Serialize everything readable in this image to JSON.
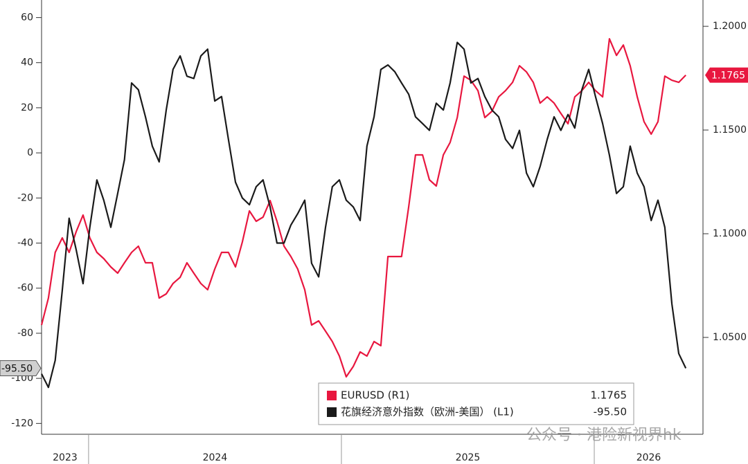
{
  "chart_data": {
    "type": "line",
    "x": [
      2023.814,
      2023.841,
      2023.868,
      2023.896,
      2023.923,
      2023.951,
      2023.978,
      2024.005,
      2024.033,
      2024.06,
      2024.088,
      2024.115,
      2024.142,
      2024.17,
      2024.197,
      2024.225,
      2024.252,
      2024.279,
      2024.307,
      2024.334,
      2024.362,
      2024.389,
      2024.416,
      2024.444,
      2024.471,
      2024.499,
      2024.526,
      2024.553,
      2024.581,
      2024.608,
      2024.636,
      2024.663,
      2024.69,
      2024.718,
      2024.745,
      2024.773,
      2024.8,
      2024.827,
      2024.855,
      2024.882,
      2024.91,
      2024.937,
      2024.964,
      2024.992,
      2025.019,
      2025.047,
      2025.074,
      2025.101,
      2025.129,
      2025.156,
      2025.184,
      2025.211,
      2025.238,
      2025.266,
      2025.293,
      2025.321,
      2025.348,
      2025.375,
      2025.403,
      2025.43,
      2025.458,
      2025.485,
      2025.512,
      2025.54,
      2025.567,
      2025.595,
      2025.622,
      2025.649,
      2025.677,
      2025.704,
      2025.732,
      2025.759,
      2025.786,
      2025.814,
      2025.841,
      2025.868,
      2025.896,
      2025.923,
      2025.951,
      2025.978,
      2026.005,
      2026.033,
      2026.06,
      2026.088,
      2026.115,
      2026.142,
      2026.17,
      2026.197,
      2026.225,
      2026.252,
      2026.279,
      2026.307,
      2026.334,
      2026.362
    ],
    "series": [
      {
        "name": "EURUSD (R1)",
        "color": "#e8173f",
        "axis": "y2",
        "values": [
          1.056,
          1.069,
          1.091,
          1.098,
          1.091,
          1.101,
          1.109,
          1.098,
          1.091,
          1.088,
          1.084,
          1.081,
          1.086,
          1.091,
          1.094,
          1.086,
          1.086,
          1.069,
          1.071,
          1.076,
          1.079,
          1.086,
          1.081,
          1.076,
          1.073,
          1.083,
          1.091,
          1.091,
          1.084,
          1.096,
          1.111,
          1.106,
          1.108,
          1.116,
          1.106,
          1.094,
          1.089,
          1.083,
          1.073,
          1.056,
          1.058,
          1.053,
          1.048,
          1.041,
          1.031,
          1.036,
          1.043,
          1.041,
          1.048,
          1.046,
          1.089,
          1.089,
          1.089,
          1.113,
          1.138,
          1.138,
          1.126,
          1.123,
          1.138,
          1.144,
          1.156,
          1.176,
          1.174,
          1.169,
          1.156,
          1.159,
          1.166,
          1.169,
          1.173,
          1.181,
          1.178,
          1.173,
          1.163,
          1.166,
          1.163,
          1.158,
          1.153,
          1.166,
          1.169,
          1.173,
          1.169,
          1.166,
          1.194,
          1.186,
          1.191,
          1.181,
          1.166,
          1.154,
          1.148,
          1.154,
          1.176,
          1.174,
          1.173,
          1.1765
        ]
      },
      {
        "name": "花旗经济意外指数（欧洲-美国） (L1)",
        "color": "#1a1a1a",
        "axis": "y",
        "values": [
          -98,
          -104,
          -92,
          -61,
          -29,
          -43,
          -58,
          -33,
          -12,
          -21,
          -33,
          -18,
          -3,
          31,
          28,
          16,
          3,
          -4,
          19,
          37,
          43,
          34,
          33,
          43,
          46,
          23,
          25,
          6,
          -13,
          -20,
          -23,
          -15,
          -12,
          -24,
          -40,
          -40,
          -32,
          -27,
          -21,
          -49,
          -55,
          -33,
          -15,
          -12,
          -21,
          -24,
          -30,
          3,
          16,
          37,
          39,
          36,
          31,
          26,
          16,
          13,
          10,
          22,
          19,
          31,
          49,
          46,
          31,
          33,
          25,
          19,
          16,
          6,
          2,
          10,
          -9,
          -15,
          -6,
          6,
          16,
          10,
          17,
          11,
          28,
          37,
          25,
          13,
          -1,
          -18,
          -15,
          3,
          -9,
          -15,
          -30,
          -21,
          -33,
          -67,
          -89,
          -95.5
        ],
        "value_labels": [
          null,
          null,
          null,
          null,
          null,
          null,
          null,
          null,
          null,
          null,
          null,
          null,
          null,
          null,
          null,
          null,
          null,
          null,
          null,
          null,
          null,
          null,
          null,
          null,
          null,
          null,
          null,
          null,
          null,
          null,
          null,
          null,
          null,
          null,
          null,
          null,
          null,
          null,
          null,
          null,
          null,
          null,
          null,
          null,
          null,
          null,
          null,
          null,
          null,
          null,
          null,
          null,
          null,
          null,
          null,
          null,
          null,
          null,
          null,
          null,
          null,
          null,
          null,
          null,
          null,
          null,
          null,
          null,
          null,
          null,
          null,
          null,
          null,
          null,
          null,
          null,
          null,
          null,
          null,
          null,
          null,
          null,
          null,
          null,
          null,
          null,
          null,
          null,
          null,
          null,
          null,
          null,
          null,
          "-95.50"
        ]
      }
    ],
    "xlim": [
      2023.814,
      2026.43
    ],
    "xticks": [
      2023,
      2024,
      2025,
      2026
    ],
    "ylim": [
      -124.8,
      67.8
    ],
    "yticks": [
      60,
      40,
      20,
      0,
      -20,
      -40,
      -60,
      -80,
      -100,
      -120
    ],
    "y2lim": [
      1.0033,
      1.2127
    ],
    "y2ticks": [
      {
        "value": 1.2,
        "label": "1.2000"
      },
      {
        "value": 1.15,
        "label": "1.1500"
      },
      {
        "value": 1.1,
        "label": "1.1000"
      },
      {
        "value": 1.05,
        "label": "1.0500"
      }
    ],
    "grid": false,
    "legend_loc": "lower right",
    "watermark": "公众号 · 港险新视界hk"
  }
}
